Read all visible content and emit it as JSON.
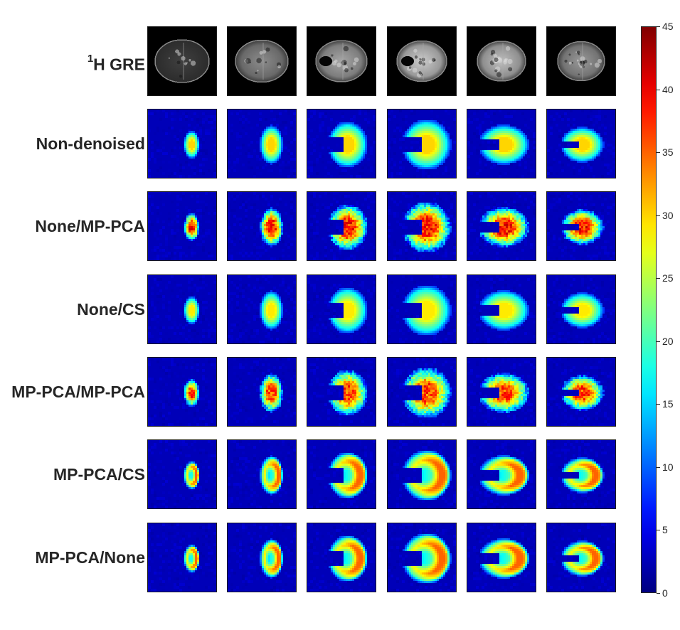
{
  "figure": {
    "rows": [
      {
        "label_main": "H GRE",
        "label_sup": "1",
        "kind": "gre"
      },
      {
        "label_main": "Non-denoised",
        "label_sup": "",
        "kind": "map",
        "style": "smooth",
        "peak": 30
      },
      {
        "label_main": "None/MP-PCA",
        "label_sup": "",
        "kind": "map",
        "style": "noisy",
        "peak": 38
      },
      {
        "label_main": "None/CS",
        "label_sup": "",
        "kind": "map",
        "style": "smooth",
        "peak": 29
      },
      {
        "label_main": "MP-PCA/MP-PCA",
        "label_sup": "",
        "kind": "map",
        "style": "noisy",
        "peak": 36
      },
      {
        "label_main": "MP-PCA/CS",
        "label_sup": "",
        "kind": "map",
        "style": "crescent",
        "peak": 35
      },
      {
        "label_main": "MP-PCA/None",
        "label_sup": "",
        "kind": "map",
        "style": "crescent",
        "peak": 35
      }
    ],
    "columns": 6,
    "colorbar": {
      "min": 0,
      "max": 45,
      "colormap": "jet",
      "ticks": [
        "0",
        "5",
        "10",
        "15",
        "20",
        "25",
        "30",
        "35",
        "40",
        "45"
      ]
    }
  }
}
